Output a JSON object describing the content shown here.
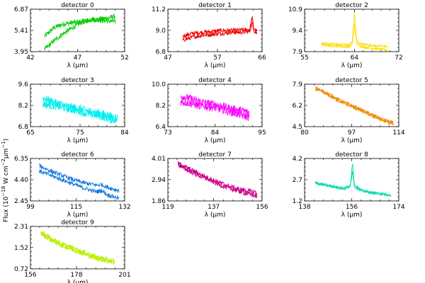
{
  "ylabel": "Flux (10$^{-18}$ W cm$^{-2}$μm$^{-1}$)",
  "ylabel_parts": {
    "prefix": "Flux (10",
    "exp1": "−18",
    "mid": " W cm",
    "exp2": "−2",
    "mid2": "μm",
    "exp3": "−1",
    "suffix": ")"
  },
  "chart_data": [
    {
      "type": "line",
      "title": "detector 0",
      "xlabel": "λ (μm)",
      "xticks": [
        "42",
        "47",
        "52"
      ],
      "yticks": [
        "3.95",
        "5.41",
        "6.87"
      ],
      "xlim": [
        42,
        52
      ],
      "ylim": [
        3.95,
        6.87
      ],
      "color": "#00cc00",
      "series": [
        {
          "x": [
            43.5,
            44.5,
            45.5,
            46.5,
            47.5,
            48.5,
            49.5,
            50.5,
            51.0
          ],
          "values": [
            5.0,
            5.6,
            5.85,
            5.95,
            6.0,
            6.1,
            6.2,
            6.3,
            6.4
          ]
        },
        {
          "x": [
            43.5,
            44.5,
            45.5,
            46.5,
            47.5,
            48.5,
            49.5,
            50.5,
            51.0
          ],
          "values": [
            4.1,
            4.7,
            5.2,
            5.6,
            6.0,
            6.2,
            6.1,
            6.05,
            6.0
          ]
        }
      ]
    },
    {
      "type": "line",
      "title": "detector 1",
      "xlabel": "λ (μm)",
      "xticks": [
        "47",
        "57",
        "66"
      ],
      "yticks": [
        "6.8",
        "9.0",
        "11.2"
      ],
      "xlim": [
        47,
        66
      ],
      "ylim": [
        6.8,
        11.2
      ],
      "color": "#ee0000",
      "series": [
        {
          "x": [
            50,
            52,
            54,
            56,
            58,
            60,
            62,
            63.5,
            64.0,
            64.3,
            64.6,
            65.0
          ],
          "values": [
            8.4,
            8.7,
            8.8,
            8.9,
            9.0,
            9.0,
            9.05,
            9.1,
            10.4,
            9.3,
            9.0,
            8.9
          ]
        },
        {
          "x": [
            50,
            52,
            54,
            56,
            58,
            60,
            62,
            63.5,
            64.0,
            64.3,
            64.6,
            65.0
          ],
          "values": [
            8.0,
            8.3,
            8.5,
            8.6,
            8.7,
            8.8,
            8.8,
            8.9,
            9.8,
            9.1,
            8.8,
            8.7
          ]
        }
      ]
    },
    {
      "type": "line",
      "title": "detector 2",
      "xlabel": "λ (μm)",
      "xticks": [
        "55",
        "64",
        "72"
      ],
      "yticks": [
        "7.9",
        "9.4",
        "10.9"
      ],
      "xlim": [
        55,
        72
      ],
      "ylim": [
        7.9,
        10.9
      ],
      "color": "#ffdd00",
      "series": [
        {
          "x": [
            58,
            59,
            60,
            61,
            62,
            63,
            63.6,
            64.0,
            64.4,
            65,
            66,
            67,
            68,
            69,
            70
          ],
          "values": [
            8.5,
            8.45,
            8.45,
            8.4,
            8.4,
            8.4,
            8.6,
            10.7,
            8.7,
            8.45,
            8.4,
            8.35,
            8.3,
            8.3,
            8.25
          ]
        },
        {
          "x": [
            58,
            59,
            60,
            61,
            62,
            63,
            63.6,
            64.0,
            64.4,
            65,
            66,
            67,
            68,
            69,
            70
          ],
          "values": [
            8.4,
            8.35,
            8.3,
            8.3,
            8.25,
            8.25,
            8.4,
            9.8,
            8.5,
            8.3,
            8.2,
            8.15,
            8.1,
            8.05,
            8.0
          ]
        }
      ]
    },
    {
      "type": "line",
      "title": "detector 3",
      "xlabel": "λ (μm)",
      "xticks": [
        "65",
        "75",
        "84"
      ],
      "yticks": [
        "6.8",
        "8.2",
        "9.6"
      ],
      "xlim": [
        65,
        84
      ],
      "ylim": [
        6.8,
        9.6
      ],
      "color": "#00eeee",
      "series": [
        {
          "x": [
            67.5,
            69,
            71,
            73,
            75,
            77,
            79,
            81,
            82.5
          ],
          "values": [
            8.7,
            8.5,
            8.3,
            8.1,
            8.0,
            7.8,
            7.7,
            7.5,
            7.4
          ]
        },
        {
          "x": [
            67.5,
            69,
            71,
            73,
            75,
            77,
            79,
            81,
            82.5
          ],
          "values": [
            8.3,
            8.2,
            8.1,
            7.95,
            7.8,
            7.6,
            7.5,
            7.3,
            7.2
          ]
        }
      ]
    },
    {
      "type": "line",
      "title": "detector 4",
      "xlabel": "λ (μm)",
      "xticks": [
        "73",
        "84",
        "95"
      ],
      "yticks": [
        "6.4",
        "8.2",
        "10.0"
      ],
      "xlim": [
        73,
        95
      ],
      "ylim": [
        6.4,
        10.0
      ],
      "color": "#ff00ff",
      "series": [
        {
          "x": [
            76,
            78,
            80,
            82,
            84,
            86,
            88,
            90,
            92
          ],
          "values": [
            9.0,
            8.8,
            8.6,
            8.4,
            8.3,
            8.1,
            7.9,
            7.8,
            7.6
          ]
        },
        {
          "x": [
            76,
            78,
            80,
            82,
            84,
            86,
            88,
            90,
            92
          ],
          "values": [
            8.5,
            8.4,
            8.2,
            8.1,
            8.0,
            7.8,
            7.6,
            7.4,
            7.2
          ]
        }
      ]
    },
    {
      "type": "line",
      "title": "detector 5",
      "xlabel": "λ (μm)",
      "xticks": [
        "80",
        "97",
        "114"
      ],
      "yticks": [
        "4.5",
        "6.2",
        "7.9"
      ],
      "xlim": [
        80,
        114
      ],
      "ylim": [
        4.5,
        7.9
      ],
      "color": "#ee8800",
      "series": [
        {
          "x": [
            84,
            88,
            92,
            96,
            100,
            104,
            108,
            112
          ],
          "values": [
            7.6,
            7.2,
            6.7,
            6.3,
            5.9,
            5.5,
            5.1,
            4.8
          ]
        },
        {
          "x": [
            84,
            88,
            92,
            96,
            100,
            104,
            108,
            112
          ],
          "values": [
            7.5,
            7.1,
            6.6,
            6.2,
            5.8,
            5.4,
            5.0,
            4.7
          ]
        }
      ]
    },
    {
      "type": "line",
      "title": "detector 6",
      "xlabel": "λ (μm)",
      "xticks": [
        "99",
        "115",
        "132"
      ],
      "yticks": [
        "2.45",
        "4.40",
        "6.35"
      ],
      "xlim": [
        99,
        132
      ],
      "ylim": [
        2.45,
        6.35
      ],
      "color": "#1177dd",
      "series": [
        {
          "x": [
            102,
            106,
            110,
            114,
            118,
            122,
            124,
            126,
            130
          ],
          "values": [
            5.7,
            5.2,
            4.8,
            4.4,
            4.1,
            3.9,
            3.95,
            3.7,
            3.4
          ]
        },
        {
          "x": [
            102,
            106,
            110,
            114,
            118,
            122,
            124,
            126,
            130
          ],
          "values": [
            5.2,
            4.8,
            4.4,
            4.0,
            3.6,
            3.3,
            3.4,
            3.0,
            2.7
          ]
        }
      ]
    },
    {
      "type": "line",
      "title": "detector 7",
      "xlabel": "λ (μm)",
      "xticks": [
        "119",
        "137",
        "156"
      ],
      "yticks": [
        "1.86",
        "2.94",
        "4.01"
      ],
      "xlim": [
        119,
        156
      ],
      "ylim": [
        1.86,
        4.01
      ],
      "color": "#cc0088",
      "series": [
        {
          "x": [
            123,
            127,
            131,
            135,
            139,
            143,
            147,
            151,
            154
          ],
          "values": [
            3.75,
            3.5,
            3.25,
            3.0,
            2.8,
            2.6,
            2.45,
            2.35,
            2.3
          ]
        },
        {
          "x": [
            123,
            127,
            131,
            135,
            139,
            143,
            147,
            151,
            154
          ],
          "values": [
            3.7,
            3.4,
            3.15,
            2.95,
            2.7,
            2.5,
            2.35,
            2.2,
            2.1
          ]
        }
      ]
    },
    {
      "type": "line",
      "title": "detector 8",
      "xlabel": "λ (μm)",
      "xticks": [
        "138",
        "156",
        "174"
      ],
      "yticks": [
        "1.2",
        "2.7",
        "4.2"
      ],
      "xlim": [
        138,
        174
      ],
      "ylim": [
        1.2,
        4.2
      ],
      "color": "#00ddaa",
      "series": [
        {
          "x": [
            142,
            146,
            150,
            153,
            155.5,
            156.3,
            157,
            160,
            164,
            168,
            171
          ],
          "values": [
            2.5,
            2.35,
            2.2,
            2.1,
            2.3,
            3.9,
            2.3,
            1.95,
            1.8,
            1.7,
            1.6
          ]
        },
        {
          "x": [
            142,
            146,
            150,
            153,
            155.5,
            156.3,
            157,
            160,
            164,
            168,
            171
          ],
          "values": [
            2.45,
            2.3,
            2.15,
            2.05,
            2.2,
            3.4,
            2.2,
            1.9,
            1.75,
            1.65,
            1.55
          ]
        }
      ]
    },
    {
      "type": "line",
      "title": "detector 9",
      "xlabel": "λ (μm)",
      "xticks": [
        "156",
        "178",
        "201"
      ],
      "yticks": [
        "0.72",
        "1.52",
        "2.31"
      ],
      "xlim": [
        156,
        201
      ],
      "ylim": [
        0.72,
        2.31
      ],
      "color": "#bbee00",
      "series": [
        {
          "x": [
            161,
            166,
            171,
            176,
            181,
            186,
            191,
            196
          ],
          "values": [
            2.1,
            1.85,
            1.65,
            1.5,
            1.35,
            1.2,
            1.1,
            1.0
          ]
        },
        {
          "x": [
            161,
            166,
            171,
            176,
            181,
            186,
            191,
            196
          ],
          "values": [
            2.05,
            1.8,
            1.6,
            1.45,
            1.3,
            1.15,
            1.05,
            0.95
          ]
        }
      ]
    }
  ]
}
